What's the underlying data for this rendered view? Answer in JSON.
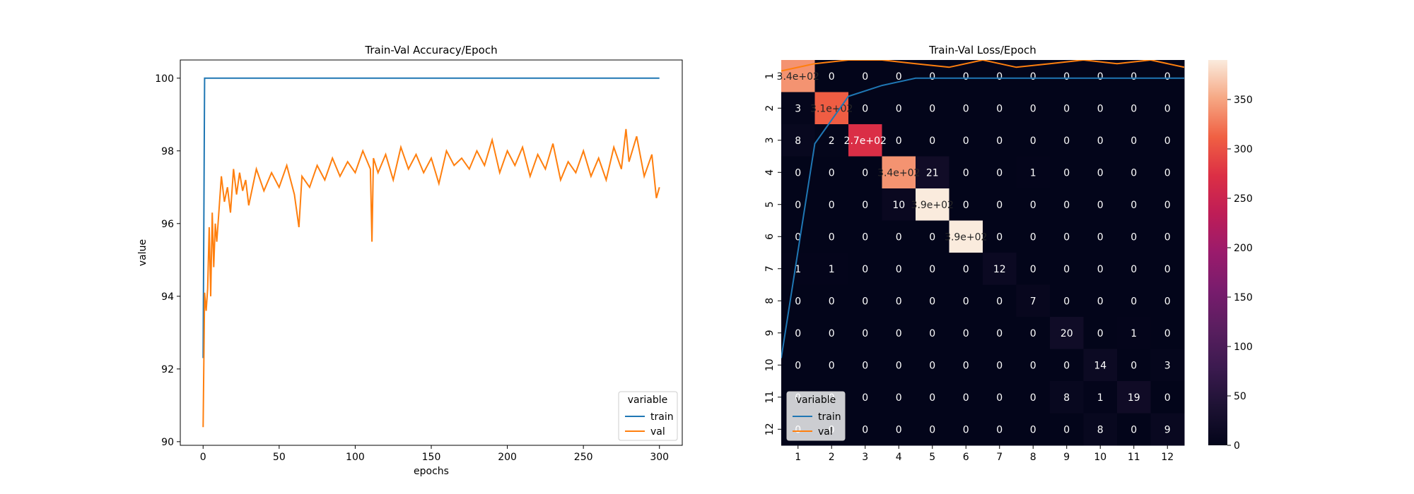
{
  "chart_data": [
    {
      "type": "line",
      "title": "Train-Val Accuracy/Epoch",
      "xlabel": "epochs",
      "ylabel": "value",
      "xlim": [
        -15,
        315
      ],
      "ylim": [
        89.9,
        100.5
      ],
      "xticks": [
        0,
        50,
        100,
        150,
        200,
        250,
        300
      ],
      "yticks": [
        90,
        92,
        94,
        96,
        98,
        100
      ],
      "legend": {
        "title": "variable",
        "placement": "lower-right",
        "entries": [
          "train",
          "val"
        ]
      },
      "series": [
        {
          "name": "train",
          "color": "#1f77b4",
          "x": [
            0,
            1,
            300
          ],
          "y": [
            92.3,
            100,
            100
          ]
        },
        {
          "name": "val",
          "color": "#ff7f0e",
          "x": [
            0,
            1,
            2,
            3,
            4,
            5,
            6,
            7,
            8,
            9,
            10,
            12,
            14,
            16,
            18,
            20,
            22,
            24,
            26,
            28,
            30,
            35,
            40,
            45,
            50,
            55,
            60,
            63,
            65,
            70,
            75,
            80,
            85,
            90,
            95,
            100,
            105,
            110,
            111,
            112,
            115,
            120,
            125,
            130,
            135,
            140,
            145,
            150,
            155,
            160,
            165,
            170,
            175,
            180,
            185,
            190,
            195,
            200,
            205,
            210,
            215,
            220,
            225,
            230,
            235,
            240,
            245,
            250,
            255,
            260,
            265,
            270,
            275,
            278,
            280,
            285,
            290,
            295,
            298,
            300
          ],
          "y": [
            90.4,
            94.1,
            93.6,
            94.2,
            95.9,
            94.0,
            96.3,
            94.8,
            96.0,
            95.5,
            96.1,
            97.3,
            96.6,
            97.0,
            96.3,
            97.5,
            96.8,
            97.4,
            96.9,
            97.2,
            96.5,
            97.5,
            96.9,
            97.4,
            97.0,
            97.6,
            96.8,
            95.9,
            97.3,
            97.0,
            97.6,
            97.2,
            97.8,
            97.3,
            97.7,
            97.4,
            98.0,
            97.5,
            95.5,
            97.8,
            97.4,
            97.9,
            97.2,
            98.1,
            97.5,
            97.9,
            97.4,
            97.8,
            97.1,
            98.0,
            97.6,
            97.8,
            97.5,
            98.0,
            97.6,
            98.3,
            97.4,
            98.0,
            97.6,
            98.1,
            97.3,
            97.9,
            97.5,
            98.2,
            97.2,
            97.7,
            97.4,
            98.0,
            97.3,
            97.8,
            97.2,
            98.1,
            97.5,
            98.6,
            97.7,
            98.4,
            97.3,
            97.9,
            96.7,
            97.0
          ]
        }
      ]
    },
    {
      "type": "heatmap",
      "title": "Train-Val Loss/Epoch",
      "row_labels": [
        "1",
        "2",
        "3",
        "4",
        "5",
        "6",
        "7",
        "8",
        "9",
        "10",
        "11",
        "12"
      ],
      "col_labels": [
        "1",
        "2",
        "3",
        "4",
        "5",
        "6",
        "7",
        "8",
        "9",
        "10",
        "11",
        "12"
      ],
      "values": [
        [
          340,
          0,
          0,
          0,
          0,
          0,
          0,
          0,
          0,
          0,
          0,
          0
        ],
        [
          3,
          310,
          0,
          0,
          0,
          0,
          0,
          0,
          0,
          0,
          0,
          0
        ],
        [
          8,
          2,
          270,
          0,
          0,
          0,
          0,
          0,
          0,
          0,
          0,
          0
        ],
        [
          0,
          0,
          0,
          340,
          21,
          0,
          0,
          1,
          0,
          0,
          0,
          0
        ],
        [
          0,
          0,
          0,
          10,
          390,
          0,
          0,
          0,
          0,
          0,
          0,
          0
        ],
        [
          0,
          0,
          0,
          0,
          0,
          390,
          0,
          0,
          0,
          0,
          0,
          0
        ],
        [
          1,
          1,
          0,
          0,
          0,
          0,
          12,
          0,
          0,
          0,
          0,
          0
        ],
        [
          0,
          0,
          0,
          0,
          0,
          0,
          0,
          7,
          0,
          0,
          0,
          0
        ],
        [
          0,
          0,
          0,
          0,
          0,
          0,
          0,
          0,
          20,
          0,
          1,
          0
        ],
        [
          0,
          0,
          0,
          0,
          0,
          0,
          0,
          0,
          0,
          14,
          0,
          3
        ],
        [
          0,
          0,
          0,
          0,
          0,
          0,
          0,
          0,
          8,
          1,
          19,
          0
        ],
        [
          0,
          0,
          0,
          0,
          0,
          0,
          0,
          0,
          0,
          8,
          0,
          9
        ]
      ],
      "annotations": [
        [
          "3.4e+02",
          "0",
          "0",
          "0",
          "0",
          "0",
          "0",
          "0",
          "0",
          "0",
          "0",
          "0"
        ],
        [
          "3",
          "3.1e+02",
          "0",
          "0",
          "0",
          "0",
          "0",
          "0",
          "0",
          "0",
          "0",
          "0"
        ],
        [
          "8",
          "2",
          "2.7e+02",
          "0",
          "0",
          "0",
          "0",
          "0",
          "0",
          "0",
          "0",
          "0"
        ],
        [
          "0",
          "0",
          "0",
          "3.4e+02",
          "21",
          "0",
          "0",
          "1",
          "0",
          "0",
          "0",
          "0"
        ],
        [
          "0",
          "0",
          "0",
          "10",
          "3.9e+02",
          "0",
          "0",
          "0",
          "0",
          "0",
          "0",
          "0"
        ],
        [
          "0",
          "0",
          "0",
          "0",
          "0",
          "3.9e+02",
          "0",
          "0",
          "0",
          "0",
          "0",
          "0"
        ],
        [
          "1",
          "1",
          "0",
          "0",
          "0",
          "0",
          "12",
          "0",
          "0",
          "0",
          "0",
          "0"
        ],
        [
          "0",
          "0",
          "0",
          "0",
          "0",
          "0",
          "0",
          "7",
          "0",
          "0",
          "0",
          "0"
        ],
        [
          "0",
          "0",
          "0",
          "0",
          "0",
          "0",
          "0",
          "0",
          "20",
          "0",
          "1",
          "0"
        ],
        [
          "0",
          "0",
          "0",
          "0",
          "0",
          "0",
          "0",
          "0",
          "0",
          "14",
          "0",
          "3"
        ],
        [
          "0",
          "0",
          "0",
          "0",
          "0",
          "0",
          "0",
          "0",
          "8",
          "1",
          "19",
          "0"
        ],
        [
          "0",
          "0",
          "0",
          "0",
          "0",
          "0",
          "0",
          "0",
          "0",
          "8",
          "0",
          "9"
        ]
      ],
      "colorbar": {
        "min": 0,
        "max": 390,
        "ticks": [
          0,
          50,
          100,
          150,
          200,
          250,
          300,
          350
        ],
        "colormap": "rocket"
      },
      "overlay_lines": {
        "ylim": [
          89.9,
          100.5
        ],
        "train": {
          "color": "#1f77b4",
          "y": [
            92.3,
            98.2,
            99.5,
            99.8,
            100,
            100,
            100,
            100,
            100,
            100,
            100,
            100,
            100
          ]
        },
        "val": {
          "color": "#ff7f0e",
          "y": [
            100.2,
            100.4,
            100.5,
            100.5,
            100.4,
            100.3,
            100.5,
            100.3,
            100.4,
            100.5,
            100.4,
            100.5,
            100.3
          ]
        }
      },
      "legend": {
        "title": "variable",
        "placement": "lower-left",
        "entries": [
          "train",
          "val"
        ]
      }
    }
  ]
}
